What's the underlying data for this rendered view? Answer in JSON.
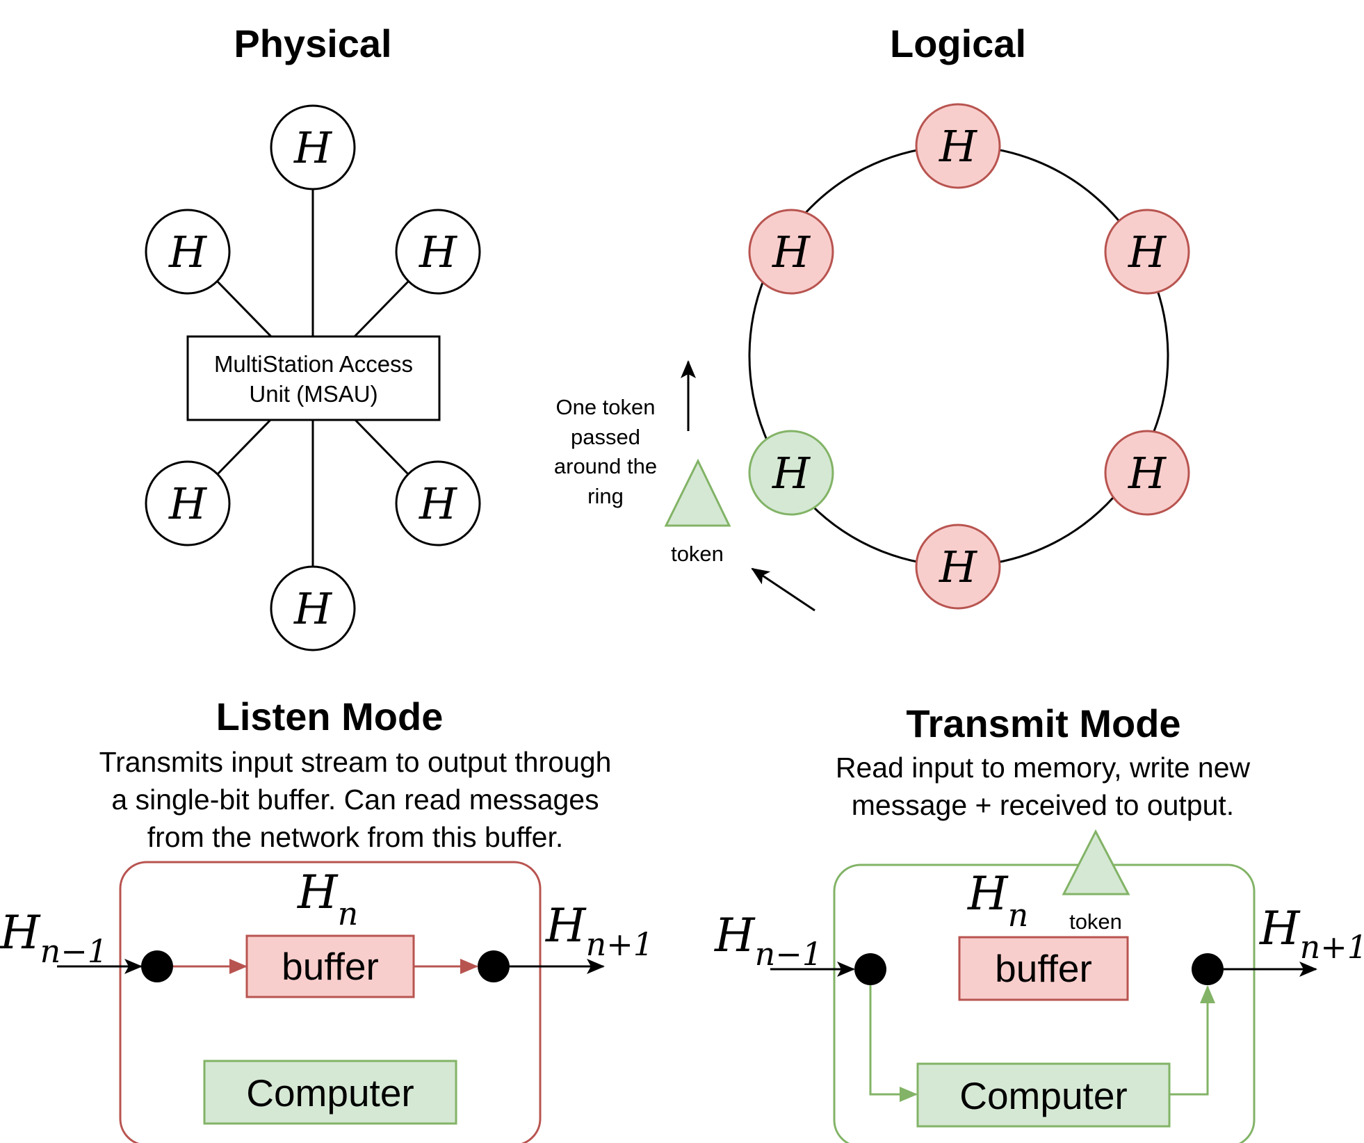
{
  "physical": {
    "title": "Physical",
    "hub_label_line1": "MultiStation Access",
    "hub_label_line2": "Unit (MSAU)",
    "host_label": "H"
  },
  "logical": {
    "title": "Logical",
    "host_label": "H",
    "token_label": "token",
    "note_lines": [
      "One token",
      "passed",
      "around the",
      "ring"
    ]
  },
  "listen": {
    "title": "Listen Mode",
    "desc_lines": [
      "Transmits input stream to output through",
      "a single-bit buffer. Can read messages",
      "from the network from this buffer."
    ],
    "host_base": "H",
    "host_sub": "n",
    "in_base": "H",
    "in_sub": "n−1",
    "out_base": "H",
    "out_sub": "n+1",
    "buffer_label": "buffer",
    "computer_label": "Computer"
  },
  "transmit": {
    "title": "Transmit Mode",
    "desc_lines": [
      "Read input to memory, write new",
      "message + received to output."
    ],
    "host_base": "H",
    "host_sub": "n",
    "in_base": "H",
    "in_sub": "n−1",
    "out_base": "H",
    "out_sub": "n+1",
    "buffer_label": "buffer",
    "computer_label": "Computer",
    "token_label": "token"
  },
  "colors": {
    "red_fill": "#f8cecc",
    "red_stroke": "#b85450",
    "green_fill": "#d5e8d4",
    "green_stroke": "#82b366",
    "black": "#000000"
  }
}
